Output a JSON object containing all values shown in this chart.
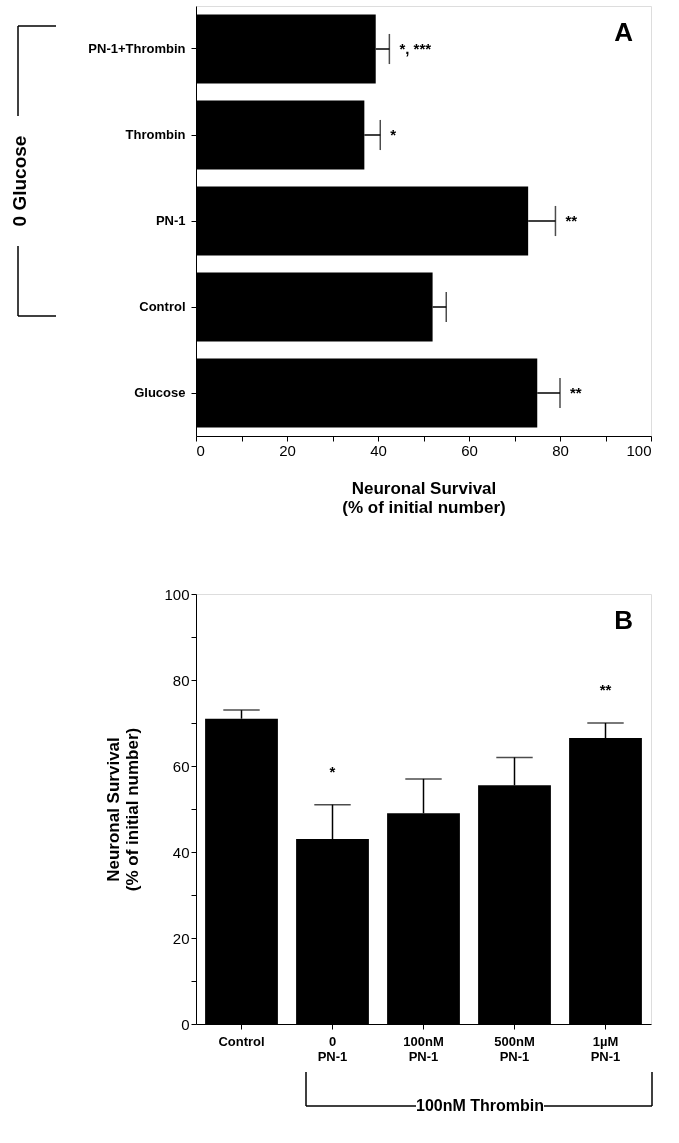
{
  "chart_data": [
    {
      "type": "bar",
      "orientation": "horizontal",
      "categories": [
        "PN-1+Thrombin",
        "Thrombin",
        "PN-1",
        "Control",
        "Glucose"
      ],
      "values": [
        39.5,
        37,
        73,
        52,
        75
      ],
      "errors": [
        [
          39.5,
          42.5
        ],
        [
          37,
          40.5
        ],
        [
          73,
          79
        ],
        [
          52,
          55
        ],
        [
          75,
          80
        ]
      ],
      "colors": [
        "#000000",
        "#000000",
        "#000000",
        "#000000",
        "#000000"
      ],
      "xlabel": "Neuronal Survival\n(% of initial number)",
      "xlim": [
        0,
        100
      ],
      "xticks": [
        0,
        {
          "value": 10,
          "label": null
        },
        20,
        {
          "value": 30,
          "label": null
        },
        40,
        {
          "value": 50,
          "label": null
        },
        60,
        {
          "value": 70,
          "label": null
        },
        80,
        {
          "value": 90,
          "label": null
        },
        100
      ],
      "grid": false,
      "annotations": [
        "*,  ***",
        "*",
        "**",
        "**",
        "A",
        "0 Glucose"
      ]
    },
    {
      "type": "bar",
      "categories": [
        "Control",
        "0\nPN-1",
        "100nM\nPN-1",
        "500nM\nPN-1",
        "1µM\nPN-1"
      ],
      "values": [
        71,
        43,
        49,
        55.5,
        66.5
      ],
      "errors": [
        [
          71,
          73
        ],
        [
          43,
          51
        ],
        [
          49,
          57
        ],
        [
          55.5,
          62
        ],
        [
          66.5,
          70
        ]
      ],
      "colors": [
        "#000000",
        "#000000",
        "#000000",
        "#000000",
        "#000000"
      ],
      "ylabel": "Neuronal Survival\n(% of initial number)",
      "ylim": [
        0,
        100
      ],
      "yticks": [
        0,
        {
          "value": 10,
          "label": null
        },
        20,
        {
          "value": 30,
          "label": null
        },
        40,
        {
          "value": 50,
          "label": null
        },
        60,
        {
          "value": 70,
          "label": null
        },
        80,
        {
          "value": 90,
          "label": null
        },
        100
      ],
      "grid": false,
      "annotations": [
        "*",
        "**",
        "B",
        "100nM Thrombin"
      ]
    }
  ]
}
